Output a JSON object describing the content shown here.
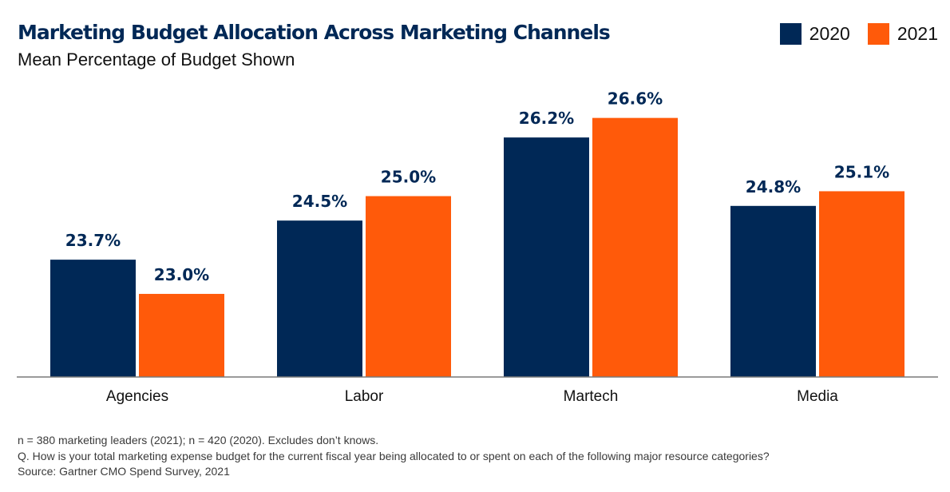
{
  "chart_data": {
    "type": "bar",
    "title": "Marketing Budget Allocation Across Marketing Channels",
    "subtitle": "Mean Percentage of Budget Shown",
    "categories": [
      "Agencies",
      "Labor",
      "Martech",
      "Media"
    ],
    "series": [
      {
        "name": "2020",
        "values": [
          23.7,
          24.5,
          26.2,
          24.8
        ],
        "labels": [
          "23.7%",
          "24.5%",
          "26.2%",
          "24.8%"
        ],
        "color": "#002856"
      },
      {
        "name": "2021",
        "values": [
          23.0,
          25.0,
          26.6,
          25.1
        ],
        "labels": [
          "23.0%",
          "25.0%",
          "26.6%",
          "25.1%"
        ],
        "color": "#ff5a0a"
      }
    ],
    "legend_position": "top-right",
    "grid": false
  },
  "footnotes": [
    "n = 380 marketing leaders (2021); n = 420 (2020). Excludes don’t knows.",
    "Q. How is your total marketing expense budget for the current fiscal year being allocated to or spent on each of the following major resource categories?",
    "Source: Gartner CMO Spend Survey, 2021"
  ]
}
